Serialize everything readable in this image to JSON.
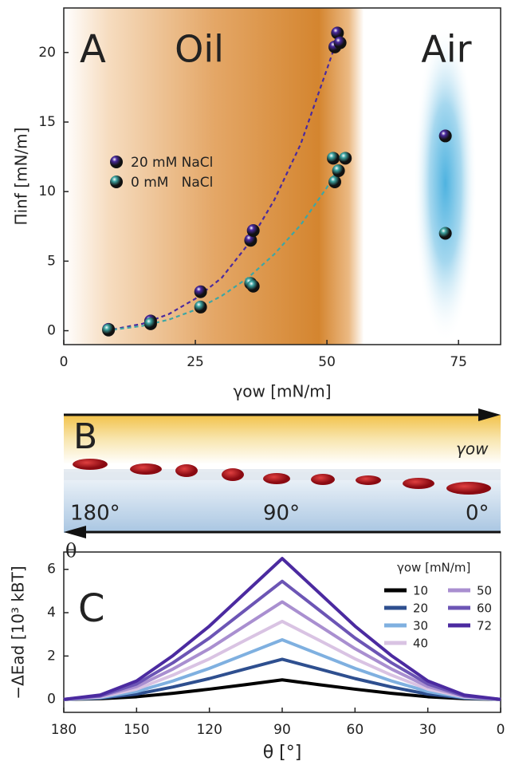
{
  "chart_data": [
    {
      "type": "scatter",
      "panel_label": "A",
      "regions": [
        "Oil",
        "Air"
      ],
      "x_label": "γow [mN/m]",
      "y_label": "Πinf [mN/m]",
      "xlim": [
        0,
        83
      ],
      "xticks": [
        0,
        25,
        50,
        75
      ],
      "ylim": [
        -1,
        23.2
      ],
      "yticks": [
        0,
        5,
        10,
        15,
        20
      ],
      "series": [
        {
          "name": "20 mM NaCl",
          "color": "#4a2a9e",
          "x": [
            8.5,
            16.5,
            26,
            35.5,
            36,
            51.5,
            52,
            52.5,
            72.5
          ],
          "values": [
            0.1,
            0.7,
            2.8,
            6.5,
            7.2,
            20.4,
            21.4,
            20.7,
            14
          ]
        },
        {
          "name": "0 mM   NaCl",
          "color": "#3fa6a3",
          "x": [
            8.5,
            16.5,
            26,
            35.5,
            36,
            51.2,
            51.5,
            52.2,
            53.5,
            72.5
          ],
          "values": [
            0.05,
            0.5,
            1.7,
            3.4,
            3.2,
            12.4,
            10.7,
            11.5,
            12.4,
            7
          ]
        }
      ],
      "fits": [
        {
          "color": "#4a2a9e",
          "x": [
            8,
            15,
            20,
            25,
            30,
            35,
            40,
            45,
            50,
            52
          ],
          "values": [
            0,
            0.5,
            1.2,
            2.3,
            3.8,
            6.2,
            9.4,
            13.4,
            18.8,
            21
          ]
        },
        {
          "color": "#3fa6a3",
          "x": [
            8,
            15,
            20,
            25,
            30,
            35,
            40,
            45,
            50,
            52
          ],
          "values": [
            0,
            0.35,
            0.8,
            1.5,
            2.5,
            3.8,
            5.5,
            7.6,
            10.3,
            11.6
          ]
        }
      ]
    },
    {
      "type": "line",
      "panel_label": "C",
      "x_label": "θ [°]",
      "y_label": "−ΔEad [10³ kBT]",
      "legend_title": "γow [mN/m]",
      "xlim": [
        180,
        0
      ],
      "xticks": [
        180,
        150,
        120,
        90,
        60,
        30,
        0
      ],
      "ylim": [
        -0.6,
        6.8
      ],
      "yticks": [
        0,
        2,
        4,
        6
      ],
      "x": [
        180,
        165,
        150,
        135,
        120,
        105,
        90,
        75,
        60,
        45,
        30,
        15,
        0
      ],
      "series": [
        {
          "name": "10",
          "color": "#000000",
          "values": [
            0,
            0.03,
            0.12,
            0.28,
            0.47,
            0.68,
            0.9,
            0.68,
            0.47,
            0.28,
            0.12,
            0.03,
            0
          ]
        },
        {
          "name": "20",
          "color": "#2e4f8f",
          "values": [
            0,
            0.06,
            0.24,
            0.57,
            0.96,
            1.41,
            1.85,
            1.41,
            0.96,
            0.57,
            0.24,
            0.06,
            0
          ]
        },
        {
          "name": "30",
          "color": "#7fb0e0",
          "values": [
            0,
            0.08,
            0.36,
            0.85,
            1.43,
            2.09,
            2.75,
            2.09,
            1.43,
            0.85,
            0.36,
            0.08,
            0
          ]
        },
        {
          "name": "40",
          "color": "#d9c3e3",
          "values": [
            0,
            0.11,
            0.47,
            1.12,
            1.87,
            2.74,
            3.6,
            2.74,
            1.87,
            1.12,
            0.47,
            0.11,
            0
          ]
        },
        {
          "name": "50",
          "color": "#a98fd0",
          "values": [
            0,
            0.14,
            0.59,
            1.4,
            2.34,
            3.42,
            4.5,
            3.42,
            2.34,
            1.4,
            0.59,
            0.14,
            0
          ]
        },
        {
          "name": "60",
          "color": "#6c55b5",
          "values": [
            0,
            0.16,
            0.71,
            1.69,
            2.83,
            4.14,
            5.45,
            4.14,
            2.83,
            1.69,
            0.71,
            0.16,
            0
          ]
        },
        {
          "name": "72",
          "color": "#4b2aa0",
          "values": [
            0,
            0.2,
            0.85,
            2.02,
            3.38,
            4.94,
            6.5,
            4.94,
            3.38,
            2.02,
            0.85,
            0.2,
            0
          ]
        }
      ]
    }
  ],
  "diagram": {
    "panel_label": "B",
    "top_label": "γow",
    "angles": [
      "180°",
      "90°",
      "0°"
    ],
    "bottom_label": "θ"
  }
}
